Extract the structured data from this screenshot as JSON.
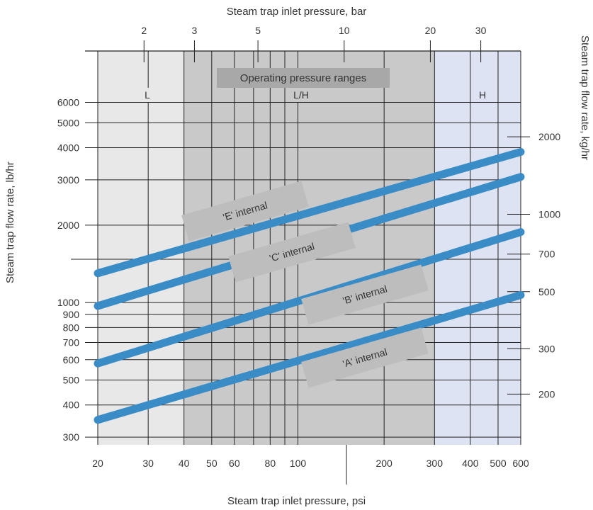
{
  "chart_data": {
    "type": "line",
    "xscale": "log",
    "yscale": "log",
    "x_axis_bottom": {
      "label": "Steam trap inlet pressure, psi",
      "ticks": [
        20,
        30,
        40,
        50,
        60,
        70,
        80,
        90,
        100,
        200,
        300,
        400,
        500,
        600
      ],
      "tick_labels": [
        "20",
        "30",
        "40",
        "50",
        "60",
        "",
        "80",
        "",
        "100",
        "200",
        "300",
        "400",
        "500",
        "600"
      ],
      "range": [
        20,
        600
      ]
    },
    "x_axis_top": {
      "label": "Steam trap inlet pressure, bar",
      "ticks": [
        2,
        3,
        5,
        10,
        20,
        30
      ],
      "tick_labels": [
        "2",
        "3",
        "5",
        "10",
        "20",
        "30"
      ]
    },
    "y_axis_left": {
      "label": "Steam trap flow rate, lb/hr",
      "ticks": [
        300,
        400,
        500,
        600,
        700,
        800,
        900,
        1000,
        2000,
        3000,
        4000,
        5000,
        6000
      ],
      "tick_labels": [
        "300",
        "400",
        "500",
        "600",
        "700",
        "800",
        "900",
        "1000",
        "2000",
        "3000",
        "4000",
        "5000",
        "6000"
      ],
      "range": [
        280,
        9500
      ]
    },
    "y_axis_right": {
      "label": "Steam trap flow rate, kg/hr",
      "ticks": [
        200,
        300,
        500,
        700,
        1000,
        2000
      ],
      "tick_labels": [
        "200",
        "300",
        "500",
        "700",
        "1000",
        "2000"
      ]
    },
    "regions": [
      {
        "label": "L",
        "x_from": 20,
        "x_to": 40,
        "color": "#e7e8e7"
      },
      {
        "label": "L/H",
        "x_from": 40,
        "x_to": 300,
        "color": "#c9c9c9"
      },
      {
        "label": "H",
        "x_from": 300,
        "x_to": 600,
        "color": "#dde3f2"
      }
    ],
    "regions_title": "Operating pressure ranges",
    "series": [
      {
        "name": "'E' internal",
        "x": [
          20,
          600
        ],
        "y": [
          1300,
          3850
        ]
      },
      {
        "name": "'C' internal",
        "x": [
          20,
          600
        ],
        "y": [
          970,
          3080
        ]
      },
      {
        "name": "'B' internal",
        "x": [
          20,
          600
        ],
        "y": [
          580,
          1880
        ]
      },
      {
        "name": "'A' internal",
        "x": [
          20,
          600
        ],
        "y": [
          350,
          1070
        ]
      }
    ],
    "line_color": "#3a8cc6",
    "grid": true
  }
}
